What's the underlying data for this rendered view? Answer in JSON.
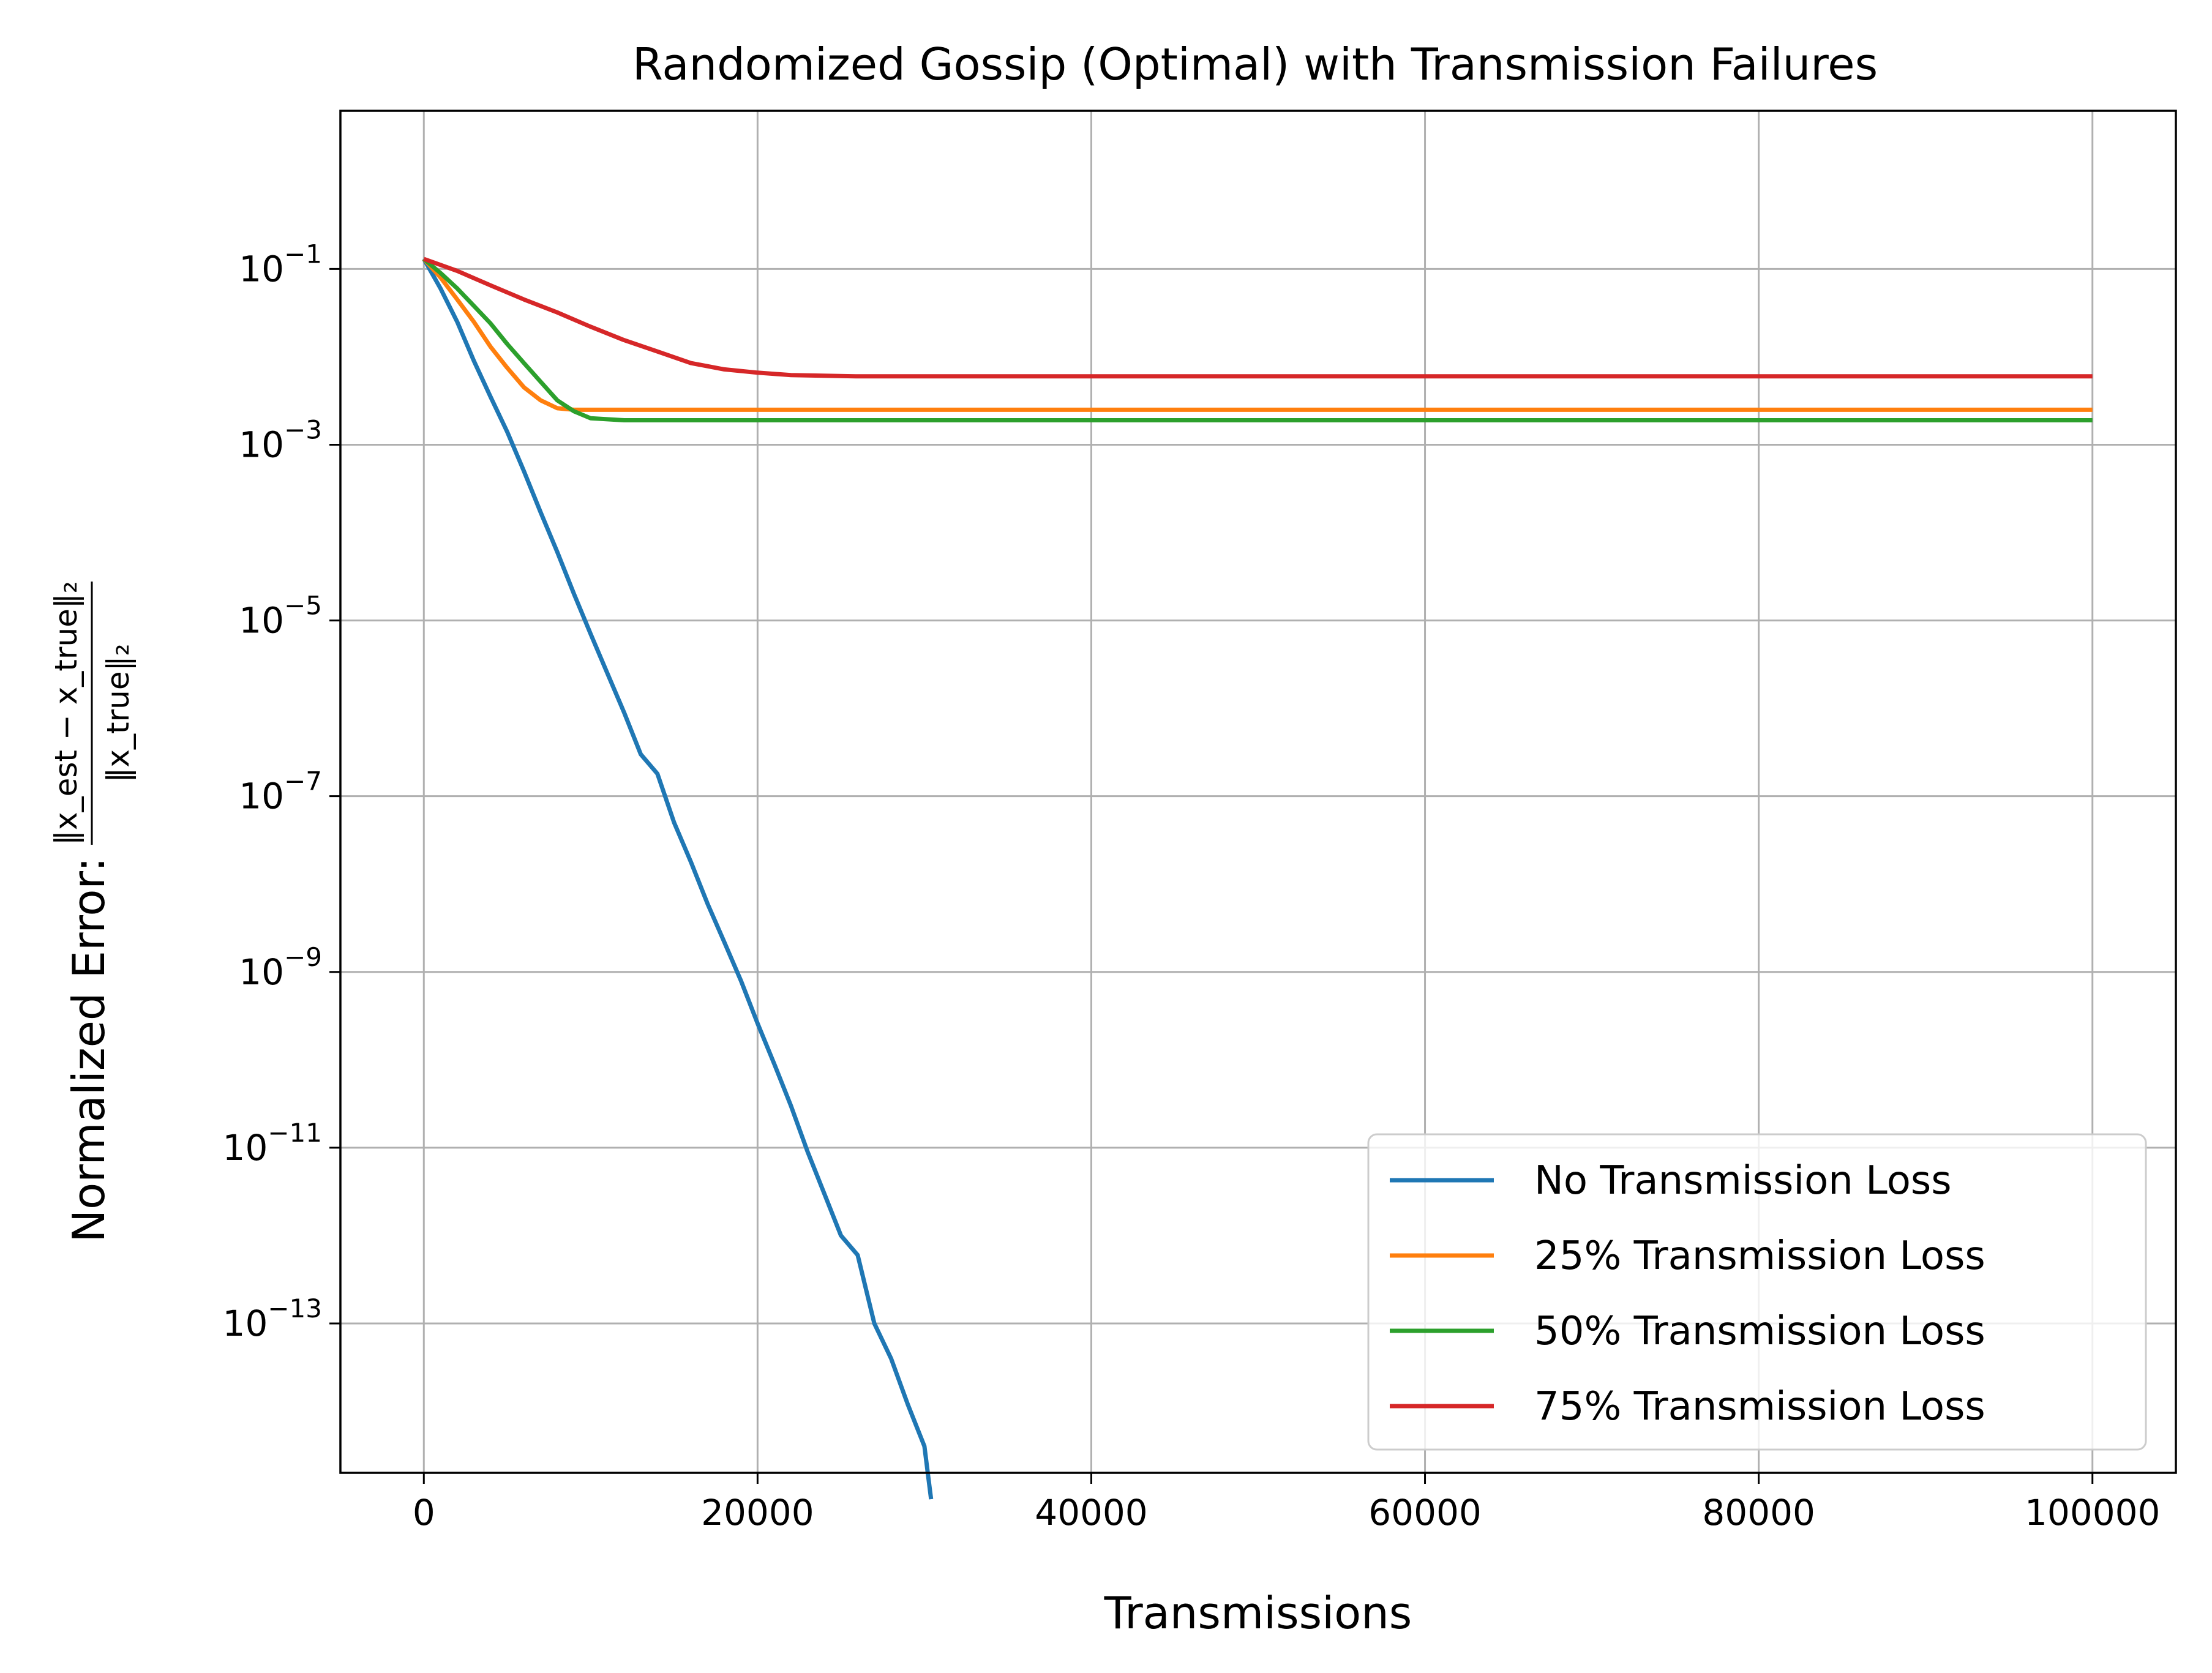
{
  "chart_data": {
    "type": "line",
    "title": "Randomized Gossip (Optimal) with Transmission Failures",
    "xlabel": "Transmissions",
    "ylabel_prefix": "Normalized Error:",
    "ylabel_fraction": {
      "numerator": "‖x_est − x_true‖₂",
      "denominator": "‖x_true‖₂"
    },
    "y_scale": "log",
    "xlim": [
      -5000,
      105000
    ],
    "ylim_exponent": [
      -14.7,
      0.8
    ],
    "x_ticks": [
      0,
      20000,
      40000,
      60000,
      80000,
      100000
    ],
    "x_tick_labels": [
      "0",
      "20000",
      "40000",
      "60000",
      "80000",
      "100000"
    ],
    "y_tick_exponents": [
      -1,
      -3,
      -5,
      -7,
      -9,
      -11,
      -13
    ],
    "y_tick_base": "10",
    "y_tick_exponent_labels": [
      "−1",
      "−3",
      "−5",
      "−7",
      "−9",
      "−11",
      "−13"
    ],
    "grid": true,
    "legend_position": "lower-right",
    "series": [
      {
        "name": "No Transmission Loss",
        "color": "#1f77b4",
        "points": [
          [
            0,
            0.13
          ],
          [
            1000,
            0.06
          ],
          [
            2000,
            0.025
          ],
          [
            3000,
            0.009
          ],
          [
            4000,
            0.0035
          ],
          [
            5000,
            0.0014
          ],
          [
            6000,
            0.0005
          ],
          [
            7000,
            0.00017
          ],
          [
            8000,
            6e-05
          ],
          [
            9000,
            2e-05
          ],
          [
            10000,
            7e-06
          ],
          [
            11000,
            2.5e-06
          ],
          [
            12000,
            9e-07
          ],
          [
            13000,
            3e-07
          ],
          [
            14000,
            1.8e-07
          ],
          [
            15000,
            5e-08
          ],
          [
            16000,
            1.8e-08
          ],
          [
            17000,
            6e-09
          ],
          [
            18000,
            2.2e-09
          ],
          [
            19000,
            8e-10
          ],
          [
            20000,
            2.6e-10
          ],
          [
            21000,
            9e-11
          ],
          [
            22000,
            3e-11
          ],
          [
            23000,
            9e-12
          ],
          [
            24000,
            3e-12
          ],
          [
            25000,
            1e-12
          ],
          [
            26000,
            6e-13
          ],
          [
            27000,
            1e-13
          ],
          [
            28000,
            4e-14
          ],
          [
            29000,
            1.2e-14
          ],
          [
            30000,
            4e-15
          ],
          [
            30400,
            1e-15
          ]
        ]
      },
      {
        "name": "25% Transmission Loss",
        "color": "#ff7f0e",
        "points": [
          [
            0,
            0.13
          ],
          [
            1000,
            0.08
          ],
          [
            2000,
            0.045
          ],
          [
            3000,
            0.025
          ],
          [
            4000,
            0.013
          ],
          [
            5000,
            0.0075
          ],
          [
            6000,
            0.0045
          ],
          [
            7000,
            0.0032
          ],
          [
            8000,
            0.0026
          ],
          [
            9000,
            0.0025
          ],
          [
            10000,
            0.0025
          ],
          [
            20000,
            0.0025
          ],
          [
            40000,
            0.0025
          ],
          [
            60000,
            0.0025
          ],
          [
            80000,
            0.0025
          ],
          [
            100000,
            0.0025
          ]
        ]
      },
      {
        "name": "50% Transmission Loss",
        "color": "#2ca02c",
        "points": [
          [
            0,
            0.13
          ],
          [
            1000,
            0.09
          ],
          [
            2000,
            0.06
          ],
          [
            3000,
            0.038
          ],
          [
            4000,
            0.024
          ],
          [
            5000,
            0.014
          ],
          [
            6000,
            0.0085
          ],
          [
            7000,
            0.0052
          ],
          [
            8000,
            0.0032
          ],
          [
            9000,
            0.0024
          ],
          [
            10000,
            0.002
          ],
          [
            12000,
            0.0019
          ],
          [
            20000,
            0.0019
          ],
          [
            40000,
            0.0019
          ],
          [
            60000,
            0.0019
          ],
          [
            80000,
            0.0019
          ],
          [
            100000,
            0.0019
          ]
        ]
      },
      {
        "name": "75% Transmission Loss",
        "color": "#d62728",
        "points": [
          [
            0,
            0.13
          ],
          [
            2000,
            0.095
          ],
          [
            4000,
            0.065
          ],
          [
            6000,
            0.045
          ],
          [
            8000,
            0.032
          ],
          [
            10000,
            0.022
          ],
          [
            12000,
            0.0155
          ],
          [
            14000,
            0.0115
          ],
          [
            16000,
            0.0085
          ],
          [
            18000,
            0.0072
          ],
          [
            20000,
            0.0066
          ],
          [
            22000,
            0.0062
          ],
          [
            26000,
            0.006
          ],
          [
            30000,
            0.006
          ],
          [
            40000,
            0.006
          ],
          [
            60000,
            0.006
          ],
          [
            80000,
            0.006
          ],
          [
            100000,
            0.006
          ]
        ]
      }
    ]
  }
}
